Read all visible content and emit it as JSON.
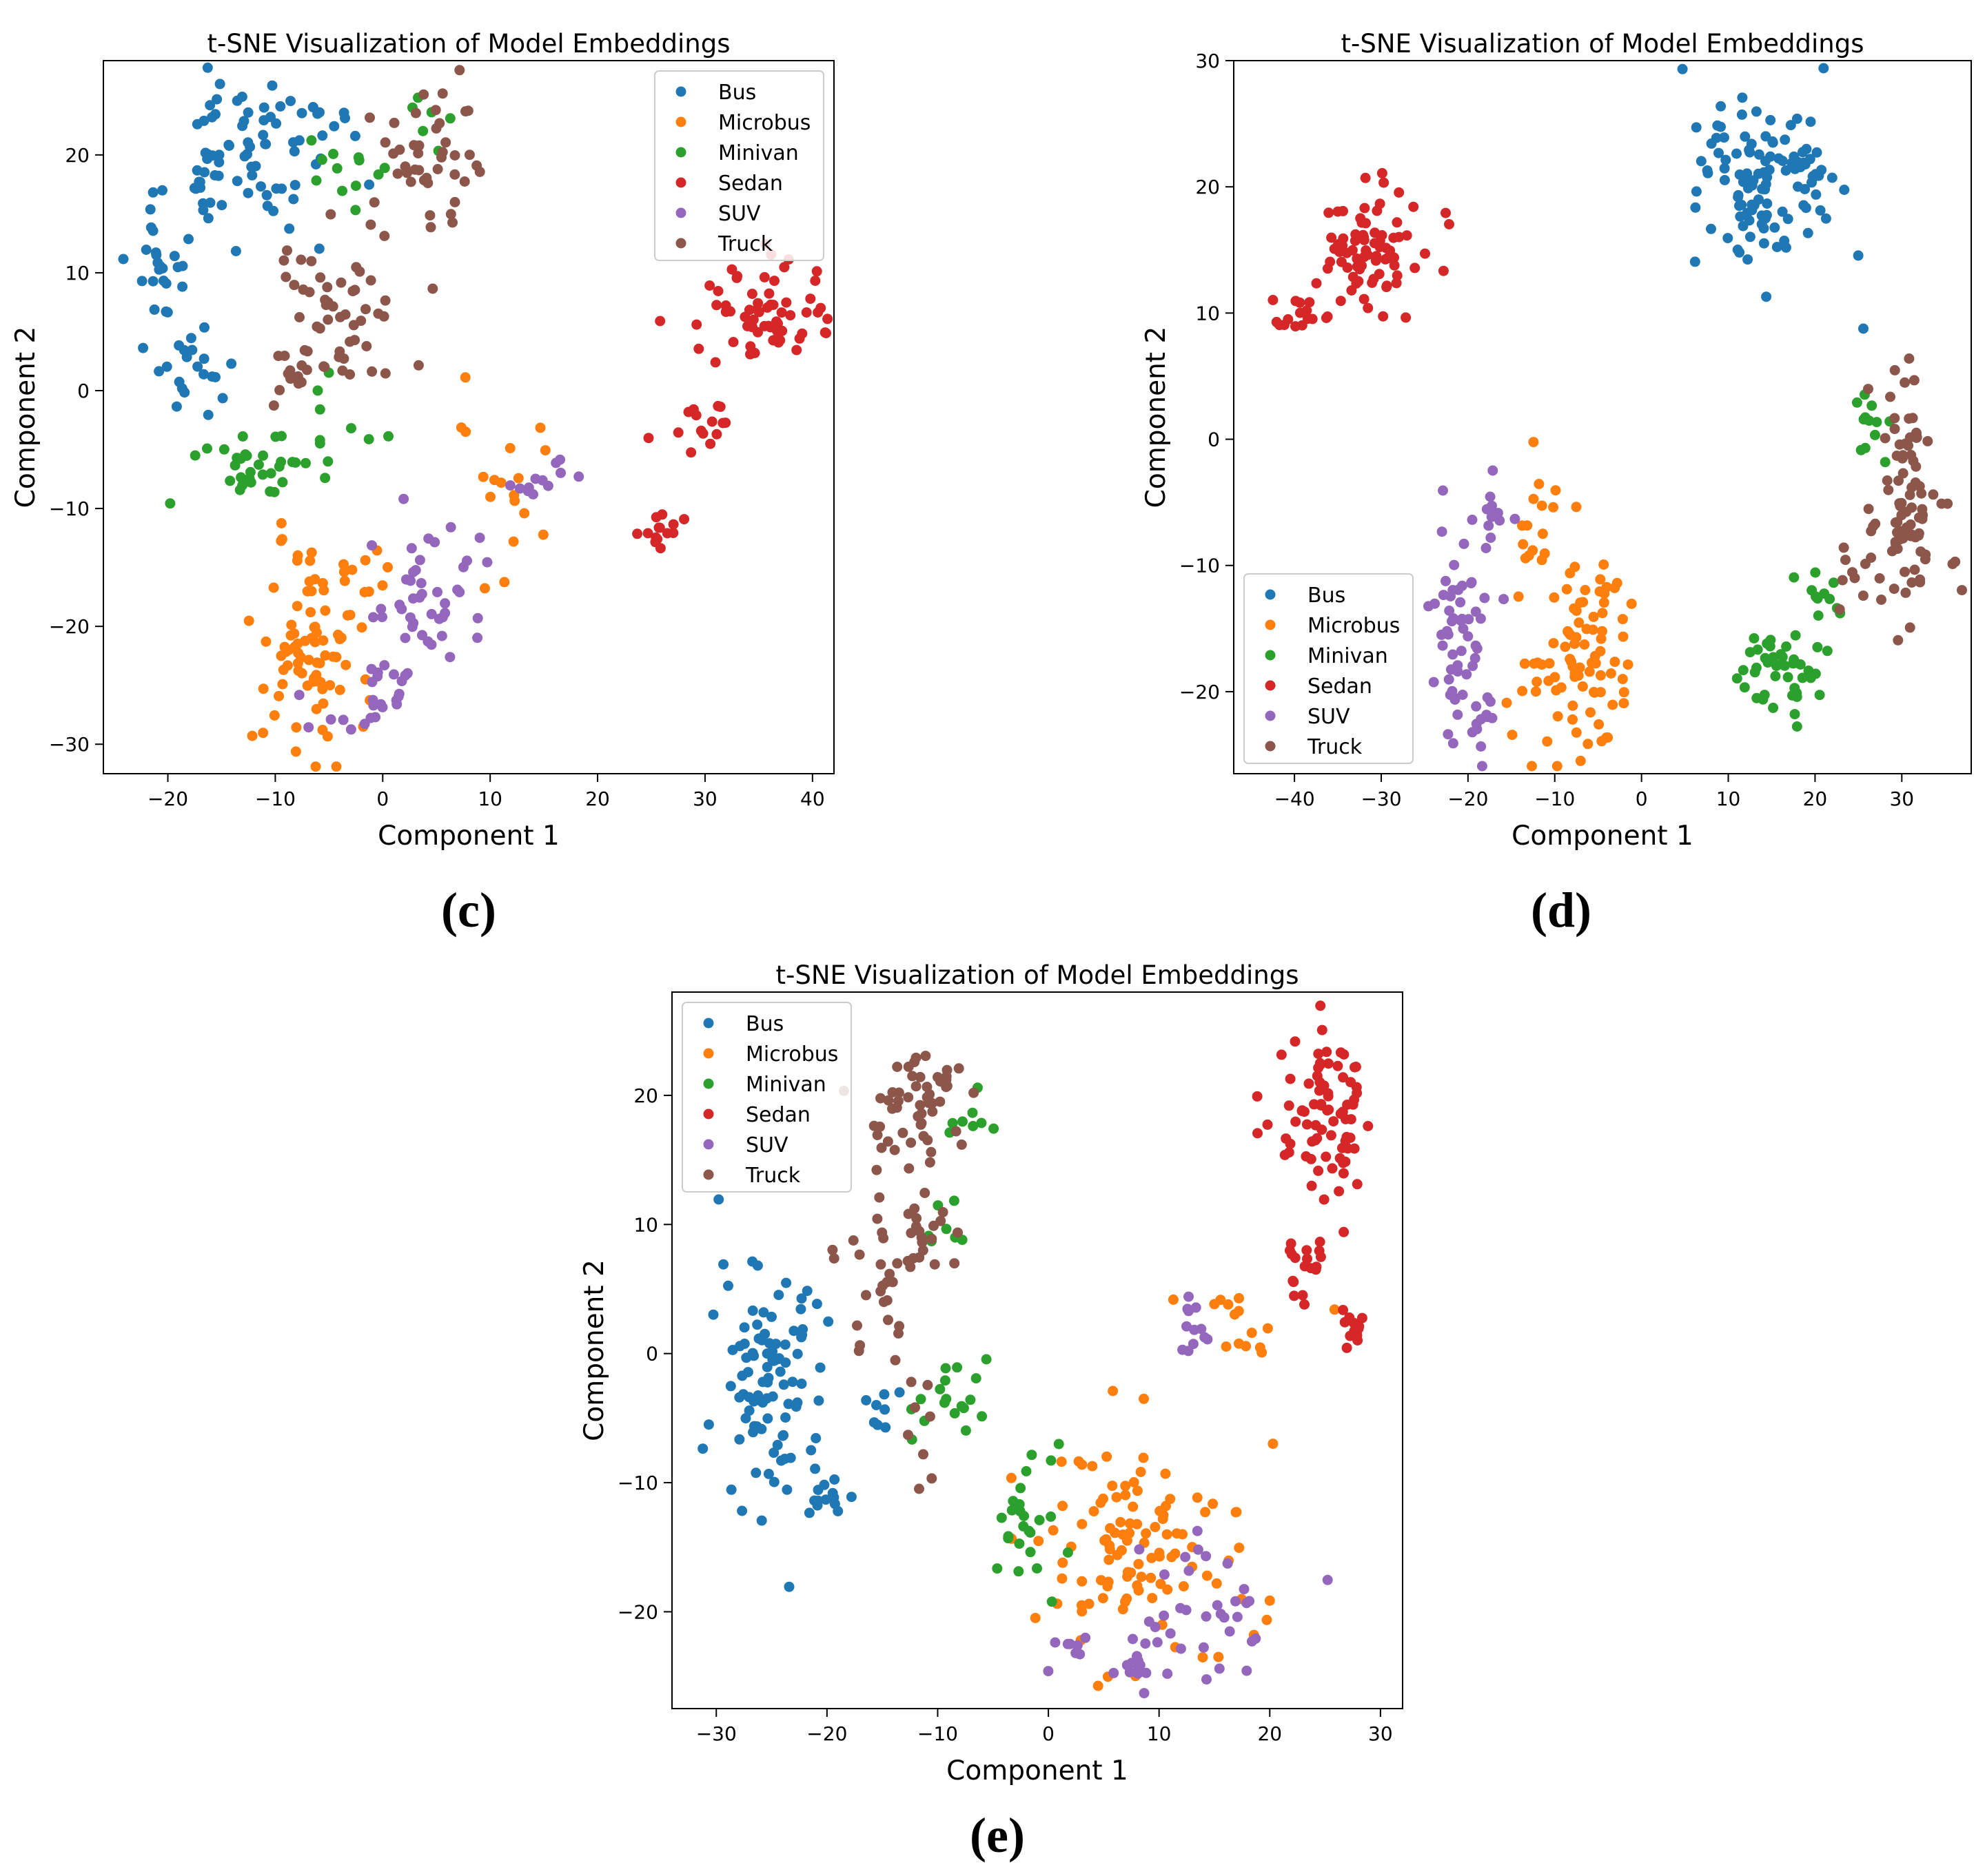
{
  "colors": {
    "Bus": "#1f77b4",
    "Microbus": "#ff7f0e",
    "Minivan": "#2ca02c",
    "Sedan": "#d62728",
    "SUV": "#9467bd",
    "Truck": "#8c564b"
  },
  "chart_data": [
    {
      "type": "scatter",
      "id": "c",
      "caption": "(c)",
      "title": "t-SNE Visualization of Model Embeddings",
      "xlabel": "Component 1",
      "ylabel": "Component 2",
      "xlim": [
        -26,
        42
      ],
      "ylim": [
        -32.5,
        28
      ],
      "xticks": [
        -20,
        -10,
        0,
        10,
        20,
        30,
        40
      ],
      "yticks": [
        -30,
        -20,
        -10,
        0,
        10,
        20
      ],
      "legend": {
        "position": "top-right",
        "entries": [
          "Bus",
          "Microbus",
          "Minivan",
          "Sedan",
          "SUV",
          "Truck"
        ]
      },
      "series": [
        {
          "name": "Bus",
          "clusters": [
            {
              "cx": -12,
              "cy": 21,
              "sx": 4,
              "sy": 3.5,
              "n": 70
            },
            {
              "cx": -21,
              "cy": 10,
              "sx": 1.5,
              "sy": 3,
              "n": 25
            },
            {
              "cx": -18,
              "cy": 2,
              "sx": 1.8,
              "sy": 2,
              "n": 20
            },
            {
              "cx": -16,
              "cy": 17,
              "sx": 1.2,
              "sy": 2.5,
              "n": 12
            }
          ]
        },
        {
          "name": "Microbus",
          "clusters": [
            {
              "cx": -7,
              "cy": -22,
              "sx": 2.6,
              "sy": 4.5,
              "n": 85
            },
            {
              "cx": 11,
              "cy": -8,
              "sx": 2.5,
              "sy": 3,
              "n": 18
            },
            {
              "cx": -2,
              "cy": -17,
              "sx": 1.5,
              "sy": 2,
              "n": 8
            }
          ]
        },
        {
          "name": "Minivan",
          "clusters": [
            {
              "cx": -12,
              "cy": -6,
              "sx": 3,
              "sy": 2,
              "n": 35
            },
            {
              "cx": -3,
              "cy": 18,
              "sx": 2,
              "sy": 2,
              "n": 12
            },
            {
              "cx": 5,
              "cy": 23,
              "sx": 1.5,
              "sy": 1.5,
              "n": 6
            },
            {
              "cx": -5,
              "cy": -2,
              "sx": 2,
              "sy": 2,
              "n": 8
            }
          ]
        },
        {
          "name": "Sedan",
          "clusters": [
            {
              "cx": 35,
              "cy": 6,
              "sx": 3,
              "sy": 2.5,
              "n": 65
            },
            {
              "cx": 29,
              "cy": -3,
              "sx": 1.5,
              "sy": 1.5,
              "n": 15
            },
            {
              "cx": 25.5,
              "cy": -12,
              "sx": 1,
              "sy": 0.7,
              "n": 14
            }
          ]
        },
        {
          "name": "SUV",
          "clusters": [
            {
              "cx": 4,
              "cy": -18,
              "sx": 3,
              "sy": 3,
              "n": 45
            },
            {
              "cx": 1,
              "cy": -25,
              "sx": 1.5,
              "sy": 1.5,
              "n": 15
            },
            {
              "cx": -4,
              "cy": -28,
              "sx": 2,
              "sy": 1,
              "n": 8
            },
            {
              "cx": 15,
              "cy": -7,
              "sx": 2,
              "sy": 1.2,
              "n": 12
            }
          ]
        },
        {
          "name": "Truck",
          "clusters": [
            {
              "cx": 4,
              "cy": 19,
              "sx": 2.5,
              "sy": 3.5,
              "n": 45
            },
            {
              "cx": -4,
              "cy": 6,
              "sx": 3,
              "sy": 2.8,
              "n": 50
            },
            {
              "cx": -8,
              "cy": 1,
              "sx": 1.5,
              "sy": 1.5,
              "n": 10
            }
          ]
        }
      ]
    },
    {
      "type": "scatter",
      "id": "d",
      "caption": "(d)",
      "title": "t-SNE Visualization of Model Embeddings",
      "xlabel": "Component 1",
      "ylabel": "Component 2",
      "xlim": [
        -47,
        38
      ],
      "ylim": [
        -26.5,
        30
      ],
      "xticks": [
        -40,
        -30,
        -20,
        -10,
        0,
        10,
        20,
        30
      ],
      "yticks": [
        -20,
        -10,
        0,
        10,
        20,
        30
      ],
      "legend": {
        "position": "bottom-left",
        "entries": [
          "Bus",
          "Microbus",
          "Minivan",
          "Sedan",
          "SUV",
          "Truck"
        ]
      },
      "series": [
        {
          "name": "Bus",
          "clusters": [
            {
              "cx": 14,
              "cy": 20,
              "sx": 4,
              "sy": 3.5,
              "n": 115
            },
            {
              "cx": 25.5,
              "cy": 8.7,
              "sx": 0.2,
              "sy": 0.2,
              "n": 1
            }
          ]
        },
        {
          "name": "Microbus",
          "clusters": [
            {
              "cx": -7,
              "cy": -17,
              "sx": 3,
              "sy": 4,
              "n": 90
            },
            {
              "cx": -12,
              "cy": -7,
              "sx": 1.5,
              "sy": 2.5,
              "n": 15
            }
          ]
        },
        {
          "name": "Minivan",
          "clusters": [
            {
              "cx": 16,
              "cy": -18,
              "sx": 2.5,
              "sy": 2,
              "n": 45
            },
            {
              "cx": 20,
              "cy": -12,
              "sx": 1.5,
              "sy": 1.5,
              "n": 10
            },
            {
              "cx": 26,
              "cy": 1,
              "sx": 1,
              "sy": 1.5,
              "n": 12
            }
          ]
        },
        {
          "name": "Sedan",
          "clusters": [
            {
              "cx": -31,
              "cy": 15,
              "sx": 3,
              "sy": 2.5,
              "n": 80
            },
            {
              "cx": -40,
              "cy": 10,
              "sx": 1.5,
              "sy": 0.8,
              "n": 15
            }
          ]
        },
        {
          "name": "SUV",
          "clusters": [
            {
              "cx": -21,
              "cy": -15,
              "sx": 2,
              "sy": 4,
              "n": 55
            },
            {
              "cx": -17,
              "cy": -6,
              "sx": 1,
              "sy": 2,
              "n": 12
            },
            {
              "cx": -19,
              "cy": -22,
              "sx": 1.2,
              "sy": 0.7,
              "n": 10
            }
          ]
        },
        {
          "name": "Truck",
          "clusters": [
            {
              "cx": 31,
              "cy": -5,
              "sx": 2,
              "sy": 5,
              "n": 90
            },
            {
              "cx": 25,
              "cy": -11,
              "sx": 1.5,
              "sy": 2,
              "n": 10
            }
          ]
        }
      ]
    },
    {
      "type": "scatter",
      "id": "e",
      "caption": "(e)",
      "title": "t-SNE Visualization of Model Embeddings",
      "xlabel": "Component 1",
      "ylabel": "Component 2",
      "xlim": [
        -34,
        32
      ],
      "ylim": [
        -27.5,
        28
      ],
      "xticks": [
        -30,
        -20,
        -10,
        0,
        10,
        20,
        30
      ],
      "yticks": [
        -20,
        -10,
        0,
        10,
        20
      ],
      "legend": {
        "position": "top-left",
        "entries": [
          "Bus",
          "Microbus",
          "Minivan",
          "Sedan",
          "SUV",
          "Truck"
        ]
      },
      "series": [
        {
          "name": "Bus",
          "clusters": [
            {
              "cx": -25,
              "cy": -2,
              "sx": 2.5,
              "sy": 5,
              "n": 95
            },
            {
              "cx": -20,
              "cy": -11,
              "sx": 1.2,
              "sy": 1,
              "n": 15
            },
            {
              "cx": -15,
              "cy": -4,
              "sx": 0.8,
              "sy": 1,
              "n": 8
            }
          ]
        },
        {
          "name": "Microbus",
          "clusters": [
            {
              "cx": 8,
              "cy": -15,
              "sx": 5,
              "sy": 4,
              "n": 110
            },
            {
              "cx": 18,
              "cy": 2,
              "sx": 2.5,
              "sy": 2,
              "n": 15
            }
          ]
        },
        {
          "name": "Minivan",
          "clusters": [
            {
              "cx": -2,
              "cy": -13,
              "sx": 1.5,
              "sy": 3.5,
              "n": 25
            },
            {
              "cx": -9,
              "cy": -4,
              "sx": 2,
              "sy": 1.8,
              "n": 18
            },
            {
              "cx": -7,
              "cy": 18,
              "sx": 1,
              "sy": 1.5,
              "n": 8
            },
            {
              "cx": -9,
              "cy": 10,
              "sx": 1.5,
              "sy": 2,
              "n": 8
            }
          ]
        },
        {
          "name": "Sedan",
          "clusters": [
            {
              "cx": 25,
              "cy": 19,
              "sx": 2,
              "sy": 3.5,
              "n": 80
            },
            {
              "cx": 23,
              "cy": 7,
              "sx": 1.2,
              "sy": 2,
              "n": 18
            },
            {
              "cx": 27.5,
              "cy": 1.5,
              "sx": 0.8,
              "sy": 1,
              "n": 14
            }
          ]
        },
        {
          "name": "SUV",
          "clusters": [
            {
              "cx": 14,
              "cy": -20,
              "sx": 3.5,
              "sy": 2.5,
              "n": 35
            },
            {
              "cx": 8,
              "cy": -24,
              "sx": 1.2,
              "sy": 0.8,
              "n": 12
            },
            {
              "cx": 2,
              "cy": -23,
              "sx": 1,
              "sy": 0.8,
              "n": 8
            },
            {
              "cx": 13,
              "cy": 2,
              "sx": 0.8,
              "sy": 1.2,
              "n": 12
            }
          ]
        },
        {
          "name": "Truck",
          "clusters": [
            {
              "cx": -12,
              "cy": 19,
              "sx": 3,
              "sy": 2.3,
              "n": 55
            },
            {
              "cx": -13,
              "cy": 9,
              "sx": 2.5,
              "sy": 1.5,
              "n": 30
            },
            {
              "cx": -15,
              "cy": 3,
              "sx": 1.5,
              "sy": 2,
              "n": 15
            },
            {
              "cx": -11,
              "cy": -6,
              "sx": 1,
              "sy": 2,
              "n": 8
            }
          ]
        }
      ]
    }
  ]
}
